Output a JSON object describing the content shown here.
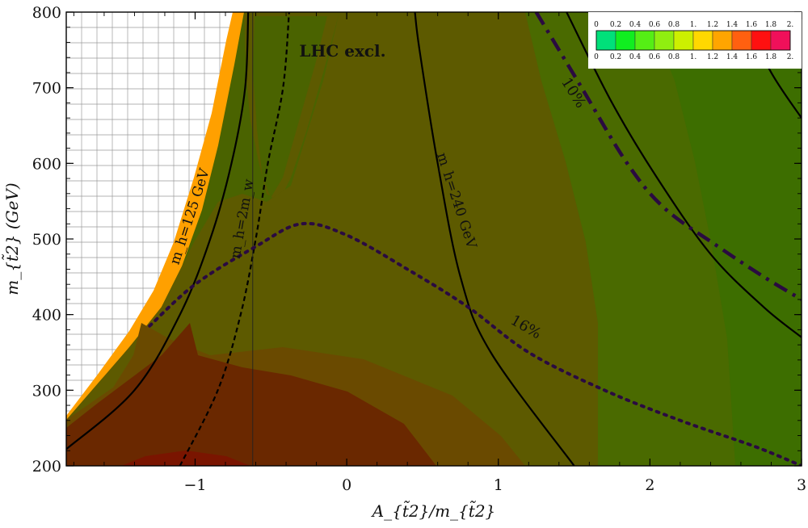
{
  "chart_data": {
    "type": "contour",
    "xlabel": "A_{t̃2}/m_{t̃2}",
    "ylabel": "m_{t̃2} (GeV)",
    "xlim": [
      -1.85,
      3.0
    ],
    "ylim": [
      200,
      800
    ],
    "x_ticks": [
      -1,
      0,
      1,
      2,
      3
    ],
    "y_ticks": [
      200,
      300,
      400,
      500,
      600,
      700,
      800
    ],
    "x_tick_labels": [
      "−1",
      "0",
      "1",
      "2",
      "3"
    ],
    "y_tick_labels": [
      "200",
      "300",
      "400",
      "500",
      "600",
      "700",
      "800"
    ],
    "annotations": {
      "lhc_excl": "LHC excl.",
      "mh125": "m_h=125 GeV",
      "mh2mw": "m_h=2m_w",
      "mh240": "m_h=240 GeV",
      "ten_percent": "10%",
      "sixteen_percent": "16%"
    },
    "colorbar": {
      "ticks": [
        "0",
        "0.2",
        "0.4",
        "0.6",
        "0.8",
        "1.",
        "1.2",
        "1.4",
        "1.6",
        "1.8",
        "2."
      ],
      "colors": [
        "#00e07a",
        "#10ee20",
        "#55ee15",
        "#90ee10",
        "#ccf000",
        "#ffd800",
        "#ffa500",
        "#ff6010",
        "#ff1010",
        "#f0105a"
      ]
    },
    "region_colors": [
      "#3d6e00",
      "#4a6300",
      "#5d5a00",
      "#6a4a00",
      "#6a2800",
      "#7a1500"
    ],
    "excluded_region": "hatched grid (upper left)",
    "curves": [
      {
        "id": "mh125",
        "style": "solid",
        "points": [
          [
            -1.85,
            222
          ],
          [
            -1.4,
            300
          ],
          [
            -1.1,
            400
          ],
          [
            -0.9,
            500
          ],
          [
            -0.76,
            600
          ],
          [
            -0.67,
            700
          ],
          [
            -0.65,
            800
          ]
        ]
      },
      {
        "id": "mh2mw",
        "style": "dashed",
        "points": [
          [
            -1.1,
            200
          ],
          [
            -0.85,
            300
          ],
          [
            -0.7,
            400
          ],
          [
            -0.6,
            500
          ],
          [
            -0.52,
            600
          ],
          [
            -0.42,
            700
          ],
          [
            -0.38,
            800
          ]
        ]
      },
      {
        "id": "mh240",
        "style": "solid",
        "points": [
          [
            1.5,
            200
          ],
          [
            0.95,
            350
          ],
          [
            0.75,
            450
          ],
          [
            0.6,
            600
          ],
          [
            0.48,
            750
          ],
          [
            0.45,
            800
          ]
        ]
      },
      {
        "id": "iso_right_1",
        "style": "solid",
        "points": [
          [
            1.45,
            800
          ],
          [
            1.75,
            680
          ],
          [
            2.05,
            580
          ],
          [
            2.4,
            480
          ],
          [
            2.75,
            410
          ],
          [
            3.0,
            370
          ]
        ]
      },
      {
        "id": "iso_right_2",
        "style": "solid",
        "points": [
          [
            2.6,
            800
          ],
          [
            2.8,
            720
          ],
          [
            3.0,
            660
          ]
        ]
      },
      {
        "id": "vertical_line",
        "style": "thin",
        "points": [
          [
            -0.62,
            200
          ],
          [
            -0.62,
            800
          ]
        ]
      },
      {
        "id": "ten_percent",
        "style": "dashdot",
        "points": [
          [
            1.25,
            800
          ],
          [
            1.55,
            700
          ],
          [
            1.85,
            600
          ],
          [
            2.1,
            540
          ],
          [
            2.45,
            490
          ],
          [
            2.75,
            450
          ],
          [
            3.0,
            420
          ]
        ]
      },
      {
        "id": "sixteen_percent",
        "style": "dotted",
        "points": [
          [
            -1.3,
            385
          ],
          [
            -1.0,
            440
          ],
          [
            -0.6,
            490
          ],
          [
            -0.3,
            520
          ],
          [
            0.0,
            505
          ],
          [
            0.4,
            460
          ],
          [
            0.8,
            410
          ],
          [
            1.2,
            350
          ],
          [
            1.7,
            300
          ],
          [
            2.2,
            260
          ],
          [
            2.7,
            225
          ],
          [
            3.0,
            200
          ]
        ]
      }
    ]
  }
}
